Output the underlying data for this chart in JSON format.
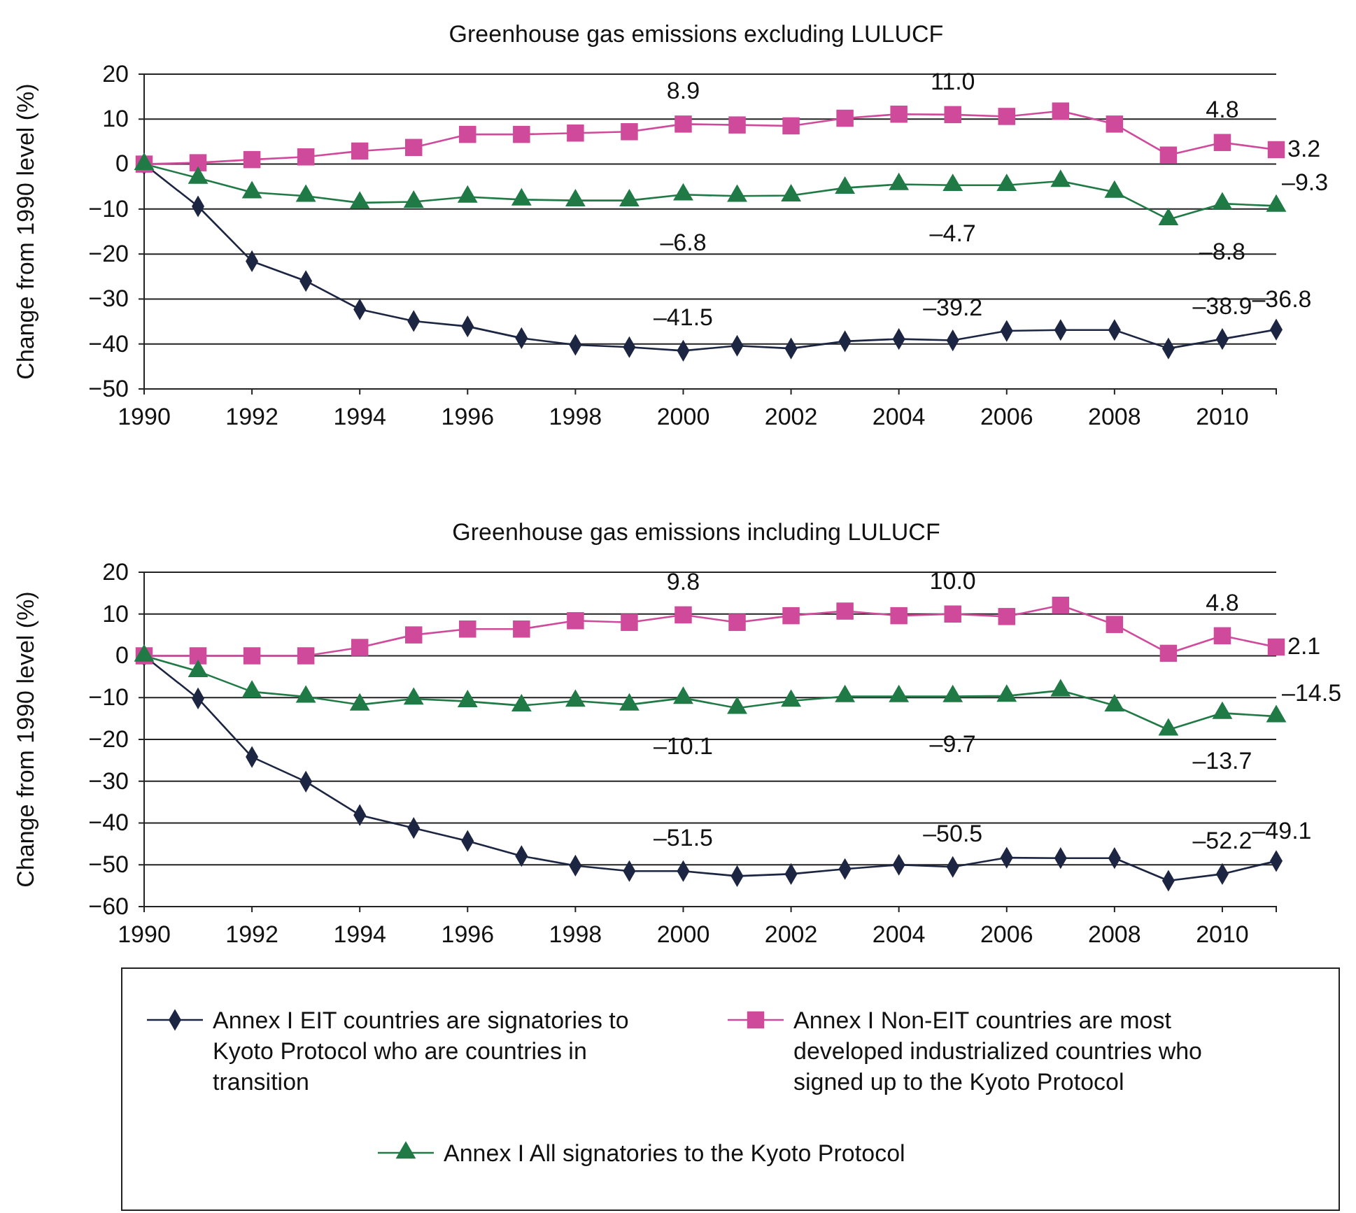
{
  "chart_data": [
    {
      "type": "line",
      "title": "Greenhouse gas emissions excluding LULUCF",
      "ylabel": "Change from 1990 level (%)",
      "x": [
        1990,
        1991,
        1992,
        1993,
        1994,
        1995,
        1996,
        1997,
        1998,
        1999,
        2000,
        2001,
        2002,
        2003,
        2004,
        2005,
        2006,
        2007,
        2008,
        2009,
        2010,
        2011
      ],
      "xlim": [
        1990,
        2011
      ],
      "xticks": [
        1990,
        1992,
        1994,
        1996,
        1998,
        2000,
        2002,
        2004,
        2006,
        2008,
        2010
      ],
      "ylim": [
        -50,
        20
      ],
      "yticks": [
        {
          "value": -50,
          "label": "−50"
        },
        {
          "value": -40,
          "label": "−40"
        },
        {
          "value": -30,
          "label": "−30"
        },
        {
          "value": -20,
          "label": "−20"
        },
        {
          "value": -10,
          "label": "−10"
        },
        0,
        10,
        20
      ],
      "grid": "y",
      "legend": false,
      "series": [
        {
          "color": "#1c2541",
          "marker": "diamond",
          "values": [
            0,
            -9.4,
            -21.6,
            -26,
            -32.3,
            -34.9,
            -36.1,
            -38.7,
            -40.2,
            -40.7,
            -41.5,
            -40.4,
            -41,
            -39.4,
            -38.9,
            -39.2,
            -37.1,
            -36.9,
            -36.9,
            -41,
            -38.9,
            -36.8
          ],
          "value_labels": [
            null,
            null,
            null,
            null,
            null,
            null,
            null,
            null,
            null,
            null,
            "–41.5",
            null,
            null,
            null,
            null,
            "–39.2",
            null,
            null,
            null,
            null,
            "–38.9",
            "–36.8"
          ]
        },
        {
          "color": "#d04a9c",
          "marker": "square",
          "values": [
            0,
            0.3,
            1,
            1.6,
            2.9,
            3.7,
            6.6,
            6.6,
            6.9,
            7.2,
            8.9,
            8.7,
            8.5,
            10.2,
            11.1,
            11.0,
            10.6,
            11.8,
            8.9,
            2,
            4.8,
            3.2
          ],
          "value_labels": [
            null,
            null,
            null,
            null,
            null,
            null,
            null,
            null,
            null,
            null,
            "8.9",
            null,
            null,
            null,
            null,
            "11.0",
            null,
            null,
            null,
            null,
            "4.8",
            "3.2"
          ]
        },
        {
          "color": "#1f7a45",
          "marker": "triangle",
          "values": [
            0,
            -3.1,
            -6.3,
            -7.1,
            -8.6,
            -8.4,
            -7.3,
            -7.9,
            -8.1,
            -8.1,
            -6.8,
            -7.1,
            -7,
            -5.3,
            -4.5,
            -4.7,
            -4.7,
            -3.8,
            -6.2,
            -12.3,
            -8.8,
            -9.3
          ],
          "value_labels": [
            null,
            null,
            null,
            null,
            null,
            null,
            null,
            null,
            null,
            null,
            "–6.8",
            null,
            null,
            null,
            null,
            "–4.7",
            null,
            null,
            null,
            null,
            "–8.8",
            "–9.3"
          ]
        }
      ]
    },
    {
      "type": "line",
      "title": "Greenhouse gas emissions including LULUCF",
      "ylabel": "Change from 1990 level (%)",
      "x": [
        1990,
        1991,
        1992,
        1993,
        1994,
        1995,
        1996,
        1997,
        1998,
        1999,
        2000,
        2001,
        2002,
        2003,
        2004,
        2005,
        2006,
        2007,
        2008,
        2009,
        2010,
        2011
      ],
      "xlim": [
        1990,
        2011
      ],
      "xticks": [
        1990,
        1992,
        1994,
        1996,
        1998,
        2000,
        2002,
        2004,
        2006,
        2008,
        2010
      ],
      "ylim": [
        -60,
        20
      ],
      "yticks": [
        {
          "value": -60,
          "label": "−60"
        },
        {
          "value": -50,
          "label": "−50"
        },
        {
          "value": -40,
          "label": "−40"
        },
        {
          "value": -30,
          "label": "−30"
        },
        {
          "value": -20,
          "label": "−20"
        },
        {
          "value": -10,
          "label": "−10"
        },
        0,
        10,
        20
      ],
      "grid": "y",
      "legend": "bottom",
      "series": [
        {
          "name": "Annex I EIT countries are signatories to Kyoto Protocol who are countries in transition",
          "color": "#1c2541",
          "marker": "diamond",
          "values": [
            0,
            -10.2,
            -24.2,
            -30.1,
            -38.1,
            -41.2,
            -44.3,
            -47.9,
            -50.2,
            -51.5,
            -51.5,
            -52.7,
            -52.2,
            -51,
            -50,
            -50.5,
            -48.3,
            -48.4,
            -48.4,
            -53.8,
            -52.2,
            -49.1
          ],
          "value_labels": [
            null,
            null,
            null,
            null,
            null,
            null,
            null,
            null,
            null,
            null,
            "–51.5",
            null,
            null,
            null,
            null,
            "–50.5",
            null,
            null,
            null,
            null,
            "–52.2",
            "–49.1"
          ]
        },
        {
          "name": "Annex I Non-EIT countries are most developed industrialized countries who signed up to the Kyoto Protocol",
          "color": "#d04a9c",
          "marker": "square",
          "values": [
            0,
            0,
            0,
            0,
            2,
            5,
            6.4,
            6.4,
            8.4,
            8,
            9.8,
            8,
            9.6,
            10.7,
            9.6,
            10.0,
            9.4,
            12.1,
            7.5,
            0.6,
            4.8,
            2.1
          ],
          "value_labels": [
            null,
            null,
            null,
            null,
            null,
            null,
            null,
            null,
            null,
            null,
            "9.8",
            null,
            null,
            null,
            null,
            "10.0",
            null,
            null,
            null,
            null,
            "4.8",
            "2.1"
          ]
        },
        {
          "name": "Annex I All signatories to the Kyoto Protocol",
          "color": "#1f7a45",
          "marker": "triangle",
          "values": [
            0,
            -3.7,
            -8.6,
            -9.8,
            -11.7,
            -10.3,
            -10.9,
            -11.9,
            -10.8,
            -11.7,
            -10.1,
            -12.5,
            -10.8,
            -9.7,
            -9.7,
            -9.7,
            -9.6,
            -8.3,
            -11.9,
            -17.7,
            -13.7,
            -14.5
          ],
          "value_labels": [
            null,
            null,
            null,
            null,
            null,
            null,
            null,
            null,
            null,
            null,
            "–10.1",
            null,
            null,
            null,
            null,
            "–9.7",
            null,
            null,
            null,
            null,
            "–13.7",
            "–14.5"
          ]
        }
      ]
    }
  ]
}
